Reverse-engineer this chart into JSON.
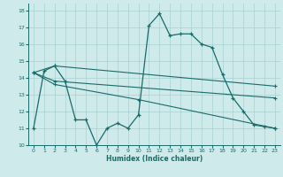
{
  "xlabel": "Humidex (Indice chaleur)",
  "background_color": "#ceeaea",
  "grid_color": "#aacfcf",
  "line_color": "#1a6b6b",
  "xlim": [
    -0.5,
    23.5
  ],
  "ylim": [
    10,
    18.4
  ],
  "yticks": [
    10,
    11,
    12,
    13,
    14,
    15,
    16,
    17,
    18
  ],
  "xticks": [
    0,
    1,
    2,
    3,
    4,
    5,
    6,
    7,
    8,
    9,
    10,
    11,
    12,
    13,
    14,
    15,
    16,
    17,
    18,
    19,
    20,
    21,
    22,
    23
  ],
  "series1_x": [
    0,
    1,
    2,
    3,
    4,
    5,
    6,
    7,
    8,
    9,
    10,
    11,
    12,
    13,
    14,
    15,
    16,
    17,
    18,
    19,
    20,
    21,
    22,
    23
  ],
  "series1_y": [
    11.0,
    14.4,
    14.7,
    13.8,
    11.5,
    11.5,
    10.0,
    11.0,
    11.3,
    11.0,
    11.8,
    17.1,
    17.8,
    16.5,
    16.6,
    16.6,
    16.0,
    15.8,
    14.2,
    12.8,
    12.0,
    11.2,
    11.1,
    11.0
  ],
  "series2_x": [
    0,
    2,
    23
  ],
  "series2_y": [
    14.3,
    14.7,
    13.5
  ],
  "series3_x": [
    0,
    2,
    23
  ],
  "series3_y": [
    14.3,
    13.8,
    12.8
  ],
  "series4_x": [
    0,
    2,
    10,
    23
  ],
  "series4_y": [
    14.3,
    13.6,
    12.7,
    11.0
  ]
}
